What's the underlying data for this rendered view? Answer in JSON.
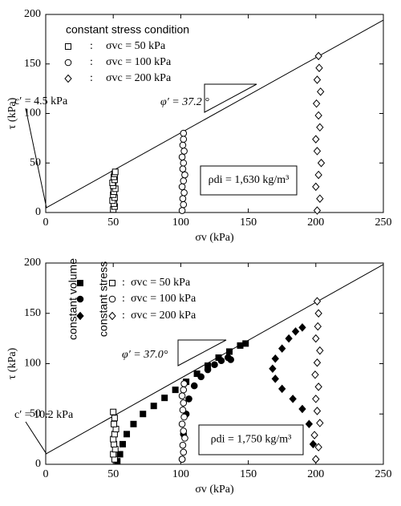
{
  "chart_data": [
    {
      "type": "scatter",
      "xlabel": "σv (kPa)",
      "ylabel": "τ (kPa)",
      "xlim": [
        0,
        250
      ],
      "ylim": [
        0,
        200
      ],
      "xticks": [
        0,
        50,
        100,
        150,
        200,
        250
      ],
      "yticks": [
        0,
        50,
        100,
        150,
        200
      ],
      "legend_title": "constant stress condition",
      "legend_separator": ":",
      "envelope": {
        "x": [
          0,
          250
        ],
        "values": [
          4.5,
          194.3
        ]
      },
      "annotations": [
        "c′ = 4.5 kPa",
        "φ′ = 37.2 °",
        "ρdi = 1,630 kg/m³"
      ],
      "series": [
        {
          "name": "σvc = 50 kPa",
          "marker": "square",
          "filled": false,
          "x": [
            50,
            51,
            50.5,
            49.5,
            51,
            50,
            50.5,
            51.5,
            50,
            49.5,
            51,
            50.5,
            51,
            51.5
          ],
          "values": [
            3,
            6,
            9,
            12,
            15,
            18,
            21,
            24,
            27,
            30,
            33,
            36,
            39,
            41
          ]
        },
        {
          "name": "σvc = 100 kPa",
          "marker": "circle",
          "filled": false,
          "x": [
            101,
            102,
            101.5,
            102.5,
            101,
            102,
            103,
            101.5,
            102,
            101,
            102.5,
            101.5,
            102,
            102
          ],
          "values": [
            2,
            8,
            14,
            20,
            26,
            32,
            38,
            44,
            50,
            56,
            62,
            68,
            74,
            80
          ]
        },
        {
          "name": "σvc = 200 kPa",
          "marker": "diamond",
          "filled": false,
          "x": [
            201,
            203,
            200,
            202,
            204,
            201,
            200,
            203,
            202,
            200.5,
            203.5,
            201,
            202.5,
            202
          ],
          "values": [
            2,
            14,
            26,
            38,
            50,
            62,
            74,
            86,
            98,
            110,
            122,
            134,
            146,
            158
          ]
        }
      ]
    },
    {
      "type": "scatter",
      "xlabel": "σv (kPa)",
      "ylabel": "τ (kPa)",
      "xlim": [
        0,
        250
      ],
      "ylim": [
        0,
        200
      ],
      "xticks": [
        0,
        50,
        100,
        150,
        200,
        250
      ],
      "yticks": [
        0,
        50,
        100,
        150,
        200
      ],
      "legend_groups": [
        "constant volume",
        "constant stress"
      ],
      "legend_separator": ":",
      "envelope": {
        "x": [
          0,
          250
        ],
        "values": [
          10.2,
          198.6
        ]
      },
      "annotations": [
        "c′ = 10.2 kPa",
        "φ′ = 37.0°",
        "ρdi = 1,750 kg/m³"
      ],
      "series": [
        {
          "marker": "square",
          "filled": true,
          "x": [
            53,
            55,
            57,
            60,
            65,
            72,
            80,
            88,
            96,
            104,
            112,
            120,
            128,
            136,
            144,
            148
          ],
          "values": [
            3,
            10,
            20,
            30,
            40,
            50,
            58,
            66,
            74,
            82,
            90,
            98,
            106,
            112,
            118,
            120
          ]
        },
        {
          "marker": "circle",
          "filled": true,
          "x": [
            101,
            102,
            104,
            106,
            110,
            115,
            120,
            125,
            130,
            135,
            137
          ],
          "values": [
            5,
            30,
            50,
            65,
            78,
            87,
            94,
            99,
            103,
            106,
            104
          ]
        },
        {
          "marker": "diamond",
          "filled": true,
          "x": [
            200,
            198,
            195,
            190,
            183,
            175,
            170,
            168,
            170,
            175,
            180,
            185,
            190
          ],
          "values": [
            5,
            20,
            40,
            55,
            65,
            75,
            85,
            95,
            105,
            115,
            125,
            132,
            136
          ]
        },
        {
          "name": "σvc = 50 kPa",
          "marker": "square",
          "filled": false,
          "x": [
            51,
            50,
            51.5,
            50.5,
            50,
            51,
            52,
            50.5,
            51,
            50
          ],
          "values": [
            5,
            10,
            15,
            20,
            25,
            30,
            35,
            40,
            46,
            52
          ]
        },
        {
          "name": "σvc = 100 kPa",
          "marker": "circle",
          "filled": false,
          "x": [
            101,
            102,
            101.5,
            103,
            102,
            101,
            102.5,
            101.5,
            102,
            101,
            102,
            102.5
          ],
          "values": [
            5,
            12,
            19,
            26,
            33,
            40,
            47,
            54,
            61,
            68,
            74,
            80
          ]
        },
        {
          "name": "σvc = 200 kPa",
          "marker": "diamond",
          "filled": false,
          "x": [
            200,
            202,
            199,
            203,
            201,
            200,
            202,
            199.5,
            201,
            203,
            200,
            201.5,
            202,
            201
          ],
          "values": [
            5,
            17,
            29,
            41,
            53,
            65,
            77,
            89,
            101,
            113,
            125,
            137,
            150,
            162
          ]
        }
      ]
    }
  ]
}
